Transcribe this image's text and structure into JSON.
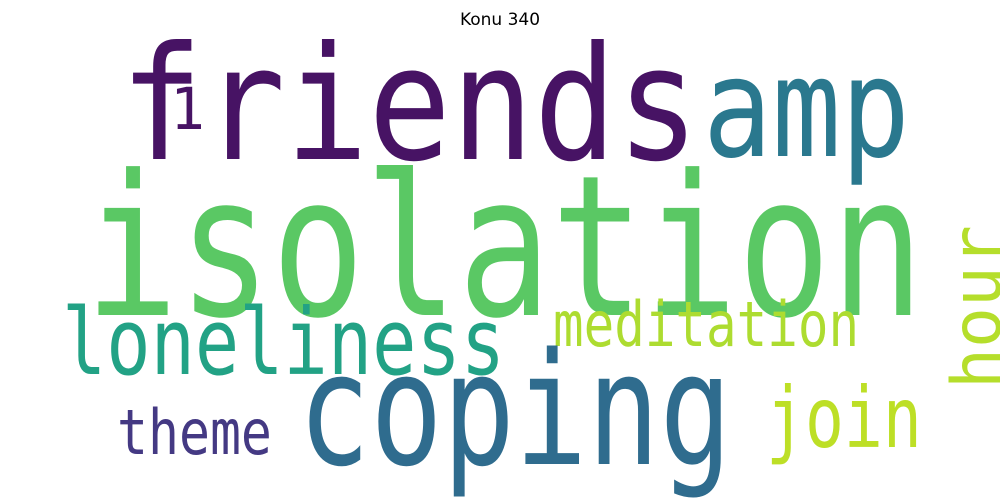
{
  "title": "Konu 340",
  "words": [
    {
      "text": "friends",
      "color": "#471364"
    },
    {
      "text": "amp",
      "color": "#2a788e"
    },
    {
      "text": "1",
      "color": "#471364"
    },
    {
      "text": "isolation",
      "color": "#5ac864"
    },
    {
      "text": "loneliness",
      "color": "#22a285"
    },
    {
      "text": "meditation",
      "color": "#addc30"
    },
    {
      "text": "coping",
      "color": "#2f6c8e"
    },
    {
      "text": "theme",
      "color": "#443983"
    },
    {
      "text": "join",
      "color": "#bddf26"
    },
    {
      "text": "hour",
      "color": "#b5de2b"
    }
  ]
}
